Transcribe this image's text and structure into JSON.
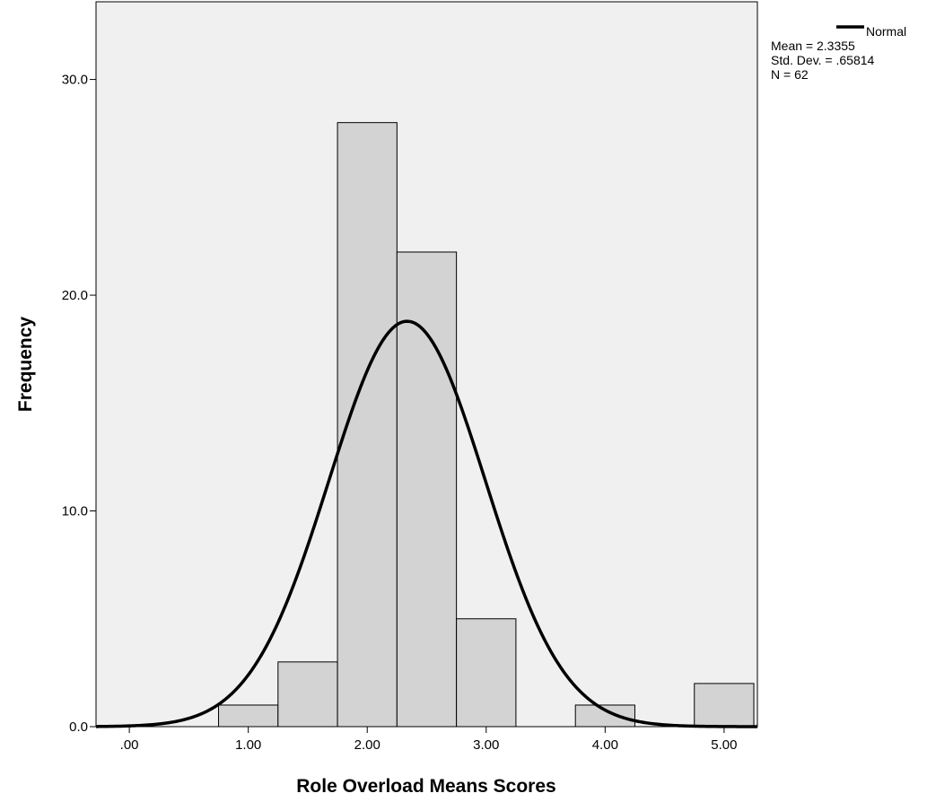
{
  "chart_data": {
    "type": "histogram",
    "xlabel": "Role Overload Means Scores",
    "ylabel": "Frequency",
    "xlim": [
      -0.28,
      5.28
    ],
    "ylim": [
      0,
      33.6
    ],
    "x_ticks": [
      0,
      1,
      2,
      3,
      4,
      5
    ],
    "x_tick_labels": [
      ".00",
      "1.00",
      "2.00",
      "3.00",
      "4.00",
      "5.00"
    ],
    "y_ticks": [
      0,
      10,
      20,
      30
    ],
    "y_tick_labels": [
      "0.0",
      "10.0",
      "20.0",
      "30.0"
    ],
    "bins": [
      {
        "start": 0.75,
        "end": 1.25,
        "count": 1
      },
      {
        "start": 1.25,
        "end": 1.75,
        "count": 3
      },
      {
        "start": 1.75,
        "end": 2.25,
        "count": 28
      },
      {
        "start": 2.25,
        "end": 2.75,
        "count": 22
      },
      {
        "start": 2.75,
        "end": 3.25,
        "count": 5
      },
      {
        "start": 3.75,
        "end": 4.25,
        "count": 1
      },
      {
        "start": 4.75,
        "end": 5.25,
        "count": 2
      }
    ],
    "normal_curve": {
      "mean": 2.3355,
      "sd": 0.65814,
      "n": 62,
      "bin_width": 0.5
    },
    "legend": {
      "series_label": "Normal",
      "stats": [
        "Mean = 2.3355",
        "Std. Dev. = .65814",
        "N = 62"
      ],
      "placement": "top-right outside plot"
    },
    "grid": false
  },
  "colors": {
    "plot_background": "#f0f0f0",
    "bar_fill": "#d3d3d3",
    "bar_stroke": "#000000",
    "curve": "#000000"
  }
}
